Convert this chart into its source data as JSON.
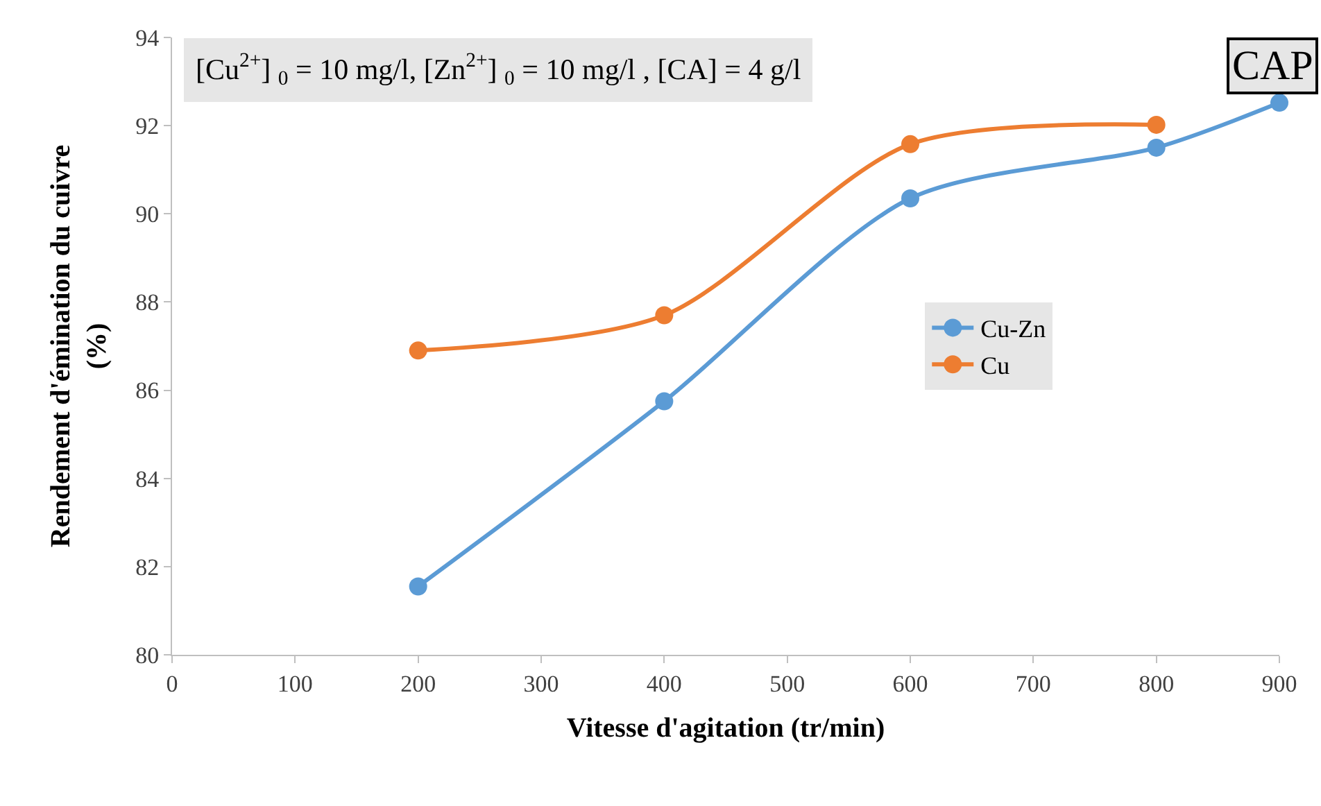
{
  "chart_data": {
    "type": "line",
    "xlabel": "Vitesse d'agitation (tr/min)",
    "ylabel": "Rendement d'émination du cuivre\n(%)",
    "x": [
      200,
      400,
      600,
      800,
      900
    ],
    "series": [
      {
        "name": "Cu-Zn",
        "color": "#5b9bd5",
        "values": [
          81.55,
          85.75,
          90.35,
          91.5,
          92.52
        ]
      },
      {
        "name": "Cu",
        "color": "#ed7d31",
        "values": [
          86.9,
          87.7,
          91.58,
          92.02,
          null
        ]
      }
    ],
    "xlim": [
      0,
      900
    ],
    "xticks": [
      0,
      100,
      200,
      300,
      400,
      500,
      600,
      700,
      800,
      900
    ],
    "ylim": [
      80,
      94
    ],
    "yticks": [
      80,
      82,
      84,
      86,
      88,
      90,
      92,
      94
    ],
    "legend": "right",
    "marker": "circle",
    "line_style": "solid",
    "annotations": [
      "[Cu$^{2+}$] $_{0}$ = 10 mg/l, [Zn$^{2+}$] $_{0}$ = 10 mg/l , [CA] = 4 g/l",
      "CAP"
    ]
  }
}
